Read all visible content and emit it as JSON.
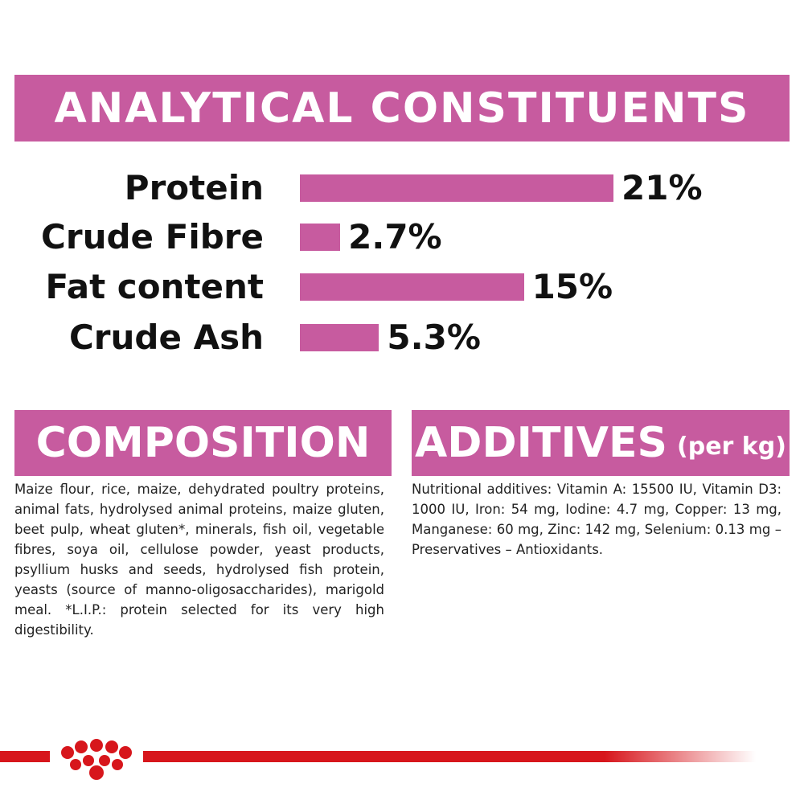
{
  "chart_data": {
    "type": "bar",
    "title": "ANALYTICAL CONSTITUENTS",
    "categories": [
      "Protein",
      "Crude Fibre",
      "Fat content",
      "Crude Ash"
    ],
    "values": [
      21,
      2.7,
      15,
      5.3
    ],
    "value_labels": [
      "21%",
      "2.7%",
      "15%",
      "5.3%"
    ],
    "color": "#c75b9f"
  },
  "composition": {
    "title": "COMPOSITION",
    "text": "Maize flour, rice, maize, dehydrated poultry proteins, animal fats, hydrolysed animal proteins, maize gluten, beet pulp, wheat gluten*, minerals, fish oil, vegetable fibres, soya oil, cellulose powder, yeast products, psyllium husks and seeds, hydrolysed fish protein, yeasts (source of manno-oligosaccharides), marigold meal. *L.I.P.: protein selected for its very high digestibility."
  },
  "additives": {
    "title": "ADDITIVES",
    "unit": "(per kg)",
    "text": "Nutritional additives: Vitamin A: 15500 IU, Vitamin D3: 1000 IU, Iron: 54 mg, Iodine: 4.7 mg, Copper: 13 mg, Manganese: 60 mg, Zinc: 142 mg, Selenium: 0.13 mg – Preservatives – Antioxidants."
  }
}
